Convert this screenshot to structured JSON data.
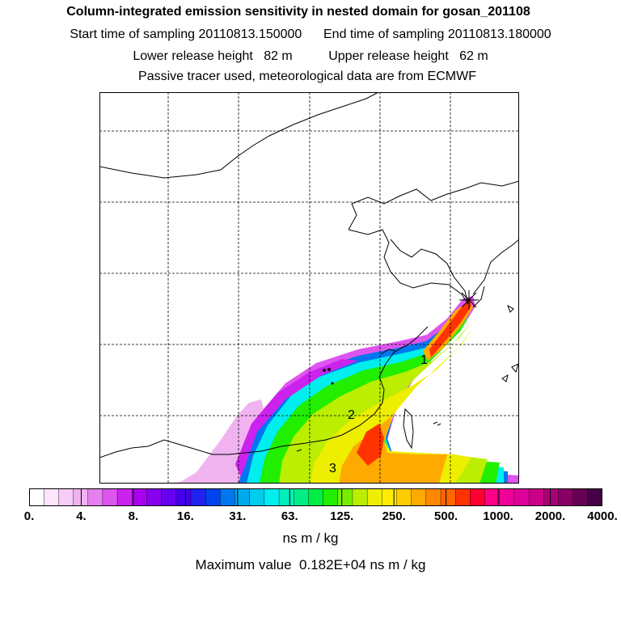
{
  "header": {
    "title": "Column-integrated emission sensitivity in nested domain for gosan_201108",
    "sampling_start": "Start time of sampling 20110813.150000",
    "sampling_end": "End time of sampling 20110813.180000",
    "lower_release": "Lower release height   82 m",
    "upper_release": "Upper release height   62 m",
    "tracer_info": "Passive tracer used, meteorological data are from ECMWF"
  },
  "map": {
    "station_marker": "star",
    "plume_labels": [
      "1",
      "2",
      "3"
    ]
  },
  "colorbar": {
    "ticks": [
      "0.",
      "4.",
      "8.",
      "16.",
      "31.",
      "63.",
      "125.",
      "250.",
      "500.",
      "1000.",
      "2000.",
      "4000."
    ],
    "colors": [
      "#ffffff",
      "#fbe6fb",
      "#f7cdf7",
      "#f0b3f0",
      "#e680f0",
      "#dd55ee",
      "#cc22ee",
      "#aa00ee",
      "#8800ee",
      "#6600ee",
      "#4400ee",
      "#2222ee",
      "#0044ee",
      "#0077ee",
      "#00aaee",
      "#00ccee",
      "#00eeee",
      "#00eebb",
      "#00ee88",
      "#00ee44",
      "#22ee00",
      "#77ee00",
      "#bbee00",
      "#eeee00",
      "#ffee00",
      "#ffcc00",
      "#ffaa00",
      "#ff8800",
      "#ff6600",
      "#ff3300",
      "#ff0033",
      "#ff0088",
      "#ee0099",
      "#dd0099",
      "#cc0088",
      "#aa0077",
      "#880066",
      "#660055",
      "#440044"
    ],
    "units": "ns m / kg",
    "maximum": "Maximum value  0.182E+04 ns m / kg"
  }
}
